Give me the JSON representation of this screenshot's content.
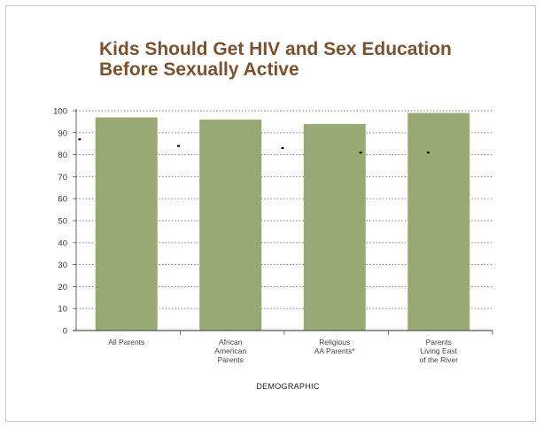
{
  "chart_data": {
    "type": "bar",
    "title_lines": [
      "Kids Should Get HIV and Sex Education",
      "Before Sexually Active"
    ],
    "xlabel": "DEMOGRAPHIC",
    "ylabel": "",
    "ylim": [
      0,
      100
    ],
    "yticks": [
      0,
      10,
      20,
      30,
      40,
      50,
      60,
      70,
      80,
      90,
      100
    ],
    "grid": true,
    "categories": [
      [
        "All Parents"
      ],
      [
        "African",
        "American",
        "Parents"
      ],
      [
        "Religious",
        "AA Parents*"
      ],
      [
        "Parents",
        "Living East",
        "of the River"
      ]
    ],
    "values": [
      97,
      96,
      94,
      99
    ],
    "markers": [
      {
        "category_index": 0,
        "offset": -0.45,
        "value": 87
      },
      {
        "category_index": 0,
        "offset": 0.5,
        "value": 84
      },
      {
        "category_index": 1,
        "offset": 0.5,
        "value": 83
      },
      {
        "category_index": 2,
        "offset": 0.25,
        "value": 81
      },
      {
        "category_index": 3,
        "offset": -0.1,
        "value": 81
      }
    ],
    "colors": {
      "bar": "#98a974",
      "title": "#7a5230",
      "axis": "#555555",
      "grid": "#555555",
      "marker": "#000000"
    }
  }
}
